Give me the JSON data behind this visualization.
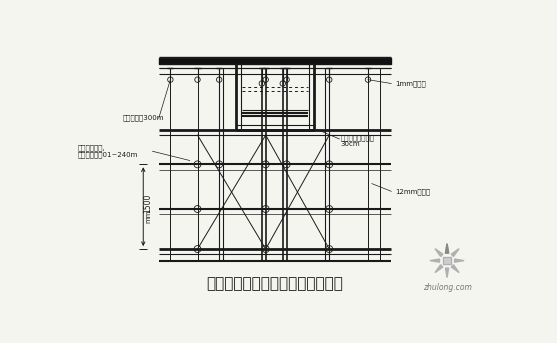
{
  "title": "有梁位置、上层梁模板安装示意图",
  "title_fontsize": 11,
  "bg_color": "#f5f5f0",
  "line_color": "#1a1a1a",
  "watermark_text": "zhulong.com",
  "ann_left_top": "步距不足时300m",
  "ann_left_mid1": "扣手架支撑架,",
  "ann_left_mid2": "板内立杆间距01~240m",
  "ann_right_top": "1mm螺旋板",
  "ann_right_mid1": "梁立柱顶托下平下",
  "ann_right_mid2": "30cm",
  "ann_right_bot": "12mm多层板",
  "dim_label": "1500",
  "dim_unit": "mm"
}
